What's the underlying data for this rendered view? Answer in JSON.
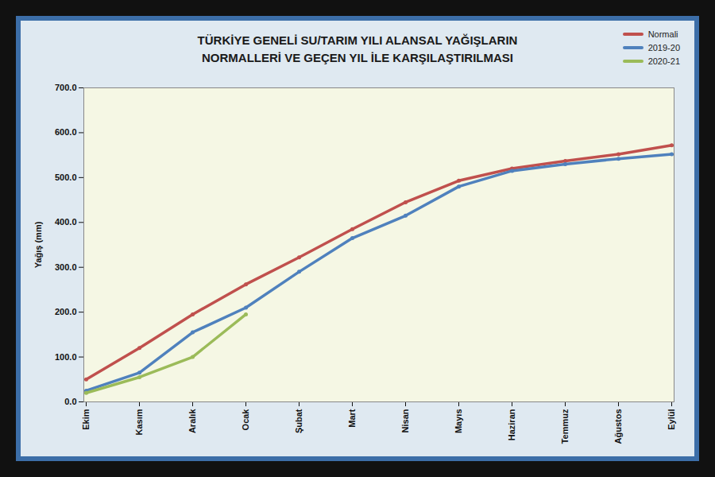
{
  "chart_data": {
    "type": "line",
    "title": "TÜRKİYE GENELİ  SU/TARIM YILI ALANSAL YAĞIŞLARIN\nNORMALLERİ VE GEÇEN YIL İLE KARŞILAŞTIRILMASI",
    "y_label": "Yağış (mm)",
    "categories": [
      "Ekim",
      "Kasım",
      "Aralık",
      "Ocak",
      "Şubat",
      "Mart",
      "Nisan",
      "Mayıs",
      "Haziran",
      "Temmuz",
      "Ağustos",
      "Eylül"
    ],
    "series": [
      {
        "name": "Normali",
        "color": "#c0504d",
        "values": [
          50,
          120,
          195,
          262,
          322,
          385,
          445,
          493,
          520,
          537,
          552,
          572
        ]
      },
      {
        "name": "2019-20",
        "color": "#4f81bd",
        "values": [
          25,
          65,
          155,
          210,
          290,
          365,
          415,
          480,
          515,
          530,
          542,
          552
        ]
      },
      {
        "name": "2020-21",
        "color": "#9bbb59",
        "values": [
          20,
          55,
          100,
          195,
          null,
          null,
          null,
          null,
          null,
          null,
          null,
          null
        ]
      }
    ],
    "ylim": [
      0,
      700
    ],
    "yticks": [
      {
        "value": 0,
        "label": "0.0"
      },
      {
        "value": 100,
        "label": "100.0"
      },
      {
        "value": 200,
        "label": "200.0"
      },
      {
        "value": 300,
        "label": "300.0"
      },
      {
        "value": 400,
        "label": "400.0"
      },
      {
        "value": 500,
        "label": "500.0"
      },
      {
        "value": 600,
        "label": "600.0"
      },
      {
        "value": 700,
        "label": "700.0"
      }
    ],
    "grid": true,
    "legend": "top-right",
    "marker": "circle"
  }
}
